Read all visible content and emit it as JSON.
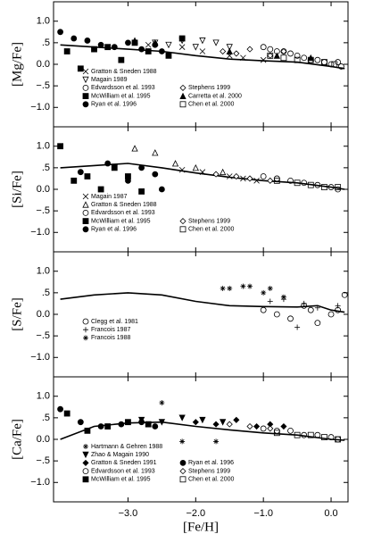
{
  "chart_data": [
    {
      "type": "scatter",
      "ylabel": "[Mg/Fe]",
      "xlim": [
        -4.1,
        0.25
      ],
      "ylim": [
        -1.45,
        1.45
      ],
      "yticks": [
        {
          "value": 1,
          "label": "1.0"
        },
        {
          "value": 0.5,
          "label": ".5"
        },
        {
          "value": 0,
          "label": "0.0"
        },
        {
          "value": -0.5,
          "label": "−.5"
        },
        {
          "value": -1,
          "label": "−1.0"
        }
      ],
      "color": "#000000",
      "curve": {
        "x": [
          -4.0,
          -3.5,
          -3.0,
          -2.5,
          -2.0,
          -1.5,
          -1.0,
          -0.5,
          0.0,
          0.2
        ],
        "values": [
          0.45,
          0.4,
          0.35,
          0.3,
          0.2,
          0.12,
          0.08,
          0.05,
          -0.05,
          -0.1
        ]
      },
      "series": [
        {
          "name": "Gratton & Sneden 1988",
          "marker": "x",
          "x": [
            -2.7,
            -2.2,
            -1.9,
            -1.5,
            -1.3,
            -1.0
          ],
          "values": [
            0.45,
            0.4,
            0.3,
            0.2,
            0.15,
            0.1
          ]
        },
        {
          "name": "Magain 1989",
          "marker": "tri-down-open",
          "x": [
            -2.6,
            -2.4,
            -2.2,
            -2.0,
            -1.9,
            -1.7,
            -1.5
          ],
          "values": [
            0.5,
            0.45,
            0.55,
            0.4,
            0.55,
            0.5,
            0.4
          ]
        },
        {
          "name": "Edvardsson et al. 1993",
          "marker": "circle-open",
          "x": [
            -1.0,
            -0.9,
            -0.8,
            -0.7,
            -0.6,
            -0.5,
            -0.4,
            -0.3,
            -0.2,
            -0.1,
            0.0,
            0.1,
            0.15
          ],
          "values": [
            0.4,
            0.35,
            0.3,
            0.3,
            0.25,
            0.2,
            0.15,
            0.1,
            0.1,
            0.05,
            0.0,
            0.05,
            -0.05
          ]
        },
        {
          "name": "McWilliam et al. 1995",
          "marker": "square",
          "x": [
            -3.9,
            -3.7,
            -3.5,
            -3.3,
            -3.1,
            -2.9,
            -2.7,
            -2.4,
            -2.2
          ],
          "values": [
            0.3,
            -0.1,
            0.35,
            0.4,
            0.1,
            0.5,
            0.3,
            0.2,
            0.6
          ]
        },
        {
          "name": "Ryan et al. 1996",
          "marker": "circle",
          "x": [
            -4.0,
            -3.8,
            -3.6,
            -3.4,
            -3.2,
            -3.0,
            -2.8,
            -2.6,
            -2.5
          ],
          "values": [
            0.75,
            0.6,
            0.55,
            0.45,
            0.4,
            0.5,
            0.35,
            0.45,
            0.3
          ]
        },
        {
          "name": "Stephens 1999",
          "marker": "diamond-open",
          "x": [
            -1.6,
            -1.4,
            -1.2,
            -0.9,
            -0.7
          ],
          "values": [
            0.3,
            0.25,
            0.35,
            0.2,
            0.3
          ]
        },
        {
          "name": "Carretta et al. 2000",
          "marker": "tri-up",
          "x": [
            -2.9,
            -2.6,
            -1.5,
            -0.8,
            -0.3
          ],
          "values": [
            0.55,
            0.5,
            0.3,
            0.2,
            0.15
          ]
        },
        {
          "name": "Chen et al. 2000",
          "marker": "square-open",
          "x": [
            -0.9,
            -0.7,
            -0.5,
            -0.3,
            -0.1,
            0.05
          ],
          "values": [
            0.2,
            0.15,
            0.1,
            0.1,
            0.05,
            0.0
          ]
        }
      ]
    },
    {
      "type": "scatter",
      "ylabel": "[Si/Fe]",
      "xlim": [
        -4.1,
        0.25
      ],
      "ylim": [
        -1.45,
        1.45
      ],
      "yticks": [
        {
          "value": 1,
          "label": "1.0"
        },
        {
          "value": 0.5,
          "label": ".5"
        },
        {
          "value": 0,
          "label": "0.0"
        },
        {
          "value": -0.5,
          "label": "−.5"
        },
        {
          "value": -1,
          "label": "−1.0"
        }
      ],
      "color": "#000000",
      "curve": {
        "x": [
          -4.0,
          -3.5,
          -3.0,
          -2.5,
          -2.0,
          -1.5,
          -1.0,
          -0.5,
          0.0,
          0.2
        ],
        "values": [
          0.5,
          0.55,
          0.6,
          0.5,
          0.38,
          0.28,
          0.2,
          0.15,
          0.05,
          0.0
        ]
      },
      "series": [
        {
          "name": "Magain 1987",
          "marker": "x",
          "x": [
            -2.2,
            -1.9,
            -1.5,
            -1.3,
            -1.1
          ],
          "values": [
            0.45,
            0.4,
            0.3,
            0.25,
            0.2
          ]
        },
        {
          "name": "Gratton & Sneden 1988",
          "marker": "tri-up-open",
          "x": [
            -2.9,
            -2.6,
            -2.3,
            -2.0,
            -1.6
          ],
          "values": [
            0.95,
            0.85,
            0.6,
            0.5,
            0.4
          ]
        },
        {
          "name": "Edvardsson et al. 1993",
          "marker": "circle-open",
          "x": [
            -1.0,
            -0.8,
            -0.6,
            -0.4,
            -0.2,
            0.0,
            0.1
          ],
          "values": [
            0.3,
            0.25,
            0.2,
            0.15,
            0.1,
            0.05,
            0.0
          ]
        },
        {
          "name": "McWilliam et al. 1995",
          "marker": "square",
          "x": [
            -4.0,
            -3.8,
            -3.6,
            -3.4,
            -3.2,
            -3.0,
            -2.8
          ],
          "values": [
            1.0,
            0.2,
            0.3,
            0.0,
            0.5,
            0.3,
            -0.05
          ]
        },
        {
          "name": "Ryan et al. 1996",
          "marker": "circle",
          "x": [
            -3.7,
            -3.3,
            -3.0,
            -2.8,
            -2.6,
            -2.5
          ],
          "values": [
            0.4,
            0.6,
            0.2,
            0.5,
            0.35,
            0.0
          ]
        },
        {
          "name": "Stephens 1999",
          "marker": "diamond-open",
          "x": [
            -1.7,
            -1.4,
            -1.2,
            -0.9
          ],
          "values": [
            0.35,
            0.3,
            0.25,
            0.2
          ]
        },
        {
          "name": "Chen et al. 2000",
          "marker": "square-open",
          "x": [
            -0.8,
            -0.5,
            -0.3,
            -0.1,
            0.1
          ],
          "values": [
            0.2,
            0.15,
            0.1,
            0.05,
            0.05
          ]
        }
      ]
    },
    {
      "type": "scatter",
      "ylabel": "[S/Fe]",
      "xlim": [
        -4.1,
        0.25
      ],
      "ylim": [
        -1.45,
        1.45
      ],
      "yticks": [
        {
          "value": 1,
          "label": "1.0"
        },
        {
          "value": 0.5,
          "label": ".5"
        },
        {
          "value": 0,
          "label": "0.0"
        },
        {
          "value": -0.5,
          "label": "−.5"
        },
        {
          "value": -1,
          "label": "−1.0"
        }
      ],
      "color": "#000000",
      "curve": {
        "x": [
          -4.0,
          -3.5,
          -3.0,
          -2.5,
          -2.0,
          -1.5,
          -1.0,
          -0.5,
          -0.2,
          0.0,
          0.2
        ],
        "values": [
          0.35,
          0.45,
          0.5,
          0.45,
          0.3,
          0.2,
          0.18,
          0.17,
          0.2,
          0.1,
          0.05
        ]
      },
      "series": [
        {
          "name": "Clegg et al. 1981",
          "marker": "circle-open",
          "x": [
            -1.0,
            -0.8,
            -0.6,
            -0.4,
            -0.3,
            -0.2,
            0.0,
            0.1,
            0.2
          ],
          "values": [
            0.1,
            0.0,
            -0.1,
            0.2,
            0.1,
            -0.2,
            0.0,
            0.1,
            0.45
          ]
        },
        {
          "name": "Francois 1987",
          "marker": "plus",
          "x": [
            -0.9,
            -0.7,
            -0.5,
            -0.4,
            -0.2,
            0.1
          ],
          "values": [
            0.3,
            0.35,
            -0.3,
            0.25,
            0.15,
            0.2
          ]
        },
        {
          "name": "Francois 1988",
          "marker": "star",
          "x": [
            -1.6,
            -1.5,
            -1.3,
            -1.2,
            -1.0,
            -0.9,
            -0.7
          ],
          "values": [
            0.6,
            0.6,
            0.65,
            0.65,
            0.5,
            0.6,
            0.4
          ]
        }
      ]
    },
    {
      "type": "scatter",
      "ylabel": "[Ca/Fe]",
      "xlabel": "[Fe/H]",
      "xlim": [
        -4.1,
        0.25
      ],
      "ylim": [
        -1.45,
        1.45
      ],
      "xticks": [
        {
          "value": -3,
          "label": "−3.0"
        },
        {
          "value": -2,
          "label": "−2.0"
        },
        {
          "value": -1,
          "label": "−1.0"
        },
        {
          "value": 0,
          "label": "0.0"
        }
      ],
      "yticks": [
        {
          "value": 1,
          "label": "1.0"
        },
        {
          "value": 0.5,
          "label": ".5"
        },
        {
          "value": 0,
          "label": "0.0"
        },
        {
          "value": -0.5,
          "label": "−.5"
        },
        {
          "value": -1,
          "label": "−1.0"
        }
      ],
      "color": "#000000",
      "curve": {
        "x": [
          -4.0,
          -3.5,
          -3.0,
          -2.5,
          -2.0,
          -1.5,
          -1.0,
          -0.5,
          0.0,
          0.2
        ],
        "values": [
          0.0,
          0.3,
          0.38,
          0.4,
          0.3,
          0.22,
          0.15,
          0.1,
          0.0,
          -0.02
        ]
      },
      "series": [
        {
          "name": "Hartmann & Gehren 1988",
          "marker": "star",
          "x": [
            -2.5,
            -2.2,
            -1.7
          ],
          "values": [
            0.85,
            -0.05,
            -0.05
          ]
        },
        {
          "name": "Zhao & Magain 1990",
          "marker": "tri-down",
          "x": [
            -2.8,
            -2.5,
            -2.2,
            -1.9,
            -1.6
          ],
          "values": [
            0.45,
            0.4,
            0.5,
            0.45,
            0.4
          ]
        },
        {
          "name": "Gratton & Sneden 1991",
          "marker": "diamond",
          "x": [
            -2.0,
            -1.7,
            -1.4,
            -1.1,
            -0.9,
            -0.7
          ],
          "values": [
            0.4,
            0.35,
            0.45,
            0.3,
            0.35,
            0.3
          ]
        },
        {
          "name": "Edvardsson et al. 1993",
          "marker": "circle-open",
          "x": [
            -1.0,
            -0.8,
            -0.6,
            -0.4,
            -0.2,
            0.0,
            0.1
          ],
          "values": [
            0.25,
            0.2,
            0.2,
            0.1,
            0.1,
            0.05,
            0.0
          ]
        },
        {
          "name": "McWilliam et al. 1995",
          "marker": "square",
          "x": [
            -3.9,
            -3.6,
            -3.3,
            -3.0,
            -2.7
          ],
          "values": [
            0.6,
            0.2,
            0.3,
            0.4,
            0.35
          ]
        },
        {
          "name": "Ryan et al. 1996",
          "marker": "circle",
          "x": [
            -4.0,
            -3.7,
            -3.4,
            -3.1,
            -2.8,
            -2.6
          ],
          "values": [
            0.7,
            0.4,
            0.3,
            0.35,
            0.4,
            0.3
          ]
        },
        {
          "name": "Stephens 1999",
          "marker": "diamond-open",
          "x": [
            -1.5,
            -1.2,
            -0.9
          ],
          "values": [
            0.35,
            0.3,
            0.25
          ]
        },
        {
          "name": "Chen et al. 2000",
          "marker": "square-open",
          "x": [
            -0.8,
            -0.5,
            -0.3,
            -0.1,
            0.1
          ],
          "values": [
            0.15,
            0.1,
            0.1,
            0.05,
            0.0
          ]
        }
      ]
    }
  ]
}
